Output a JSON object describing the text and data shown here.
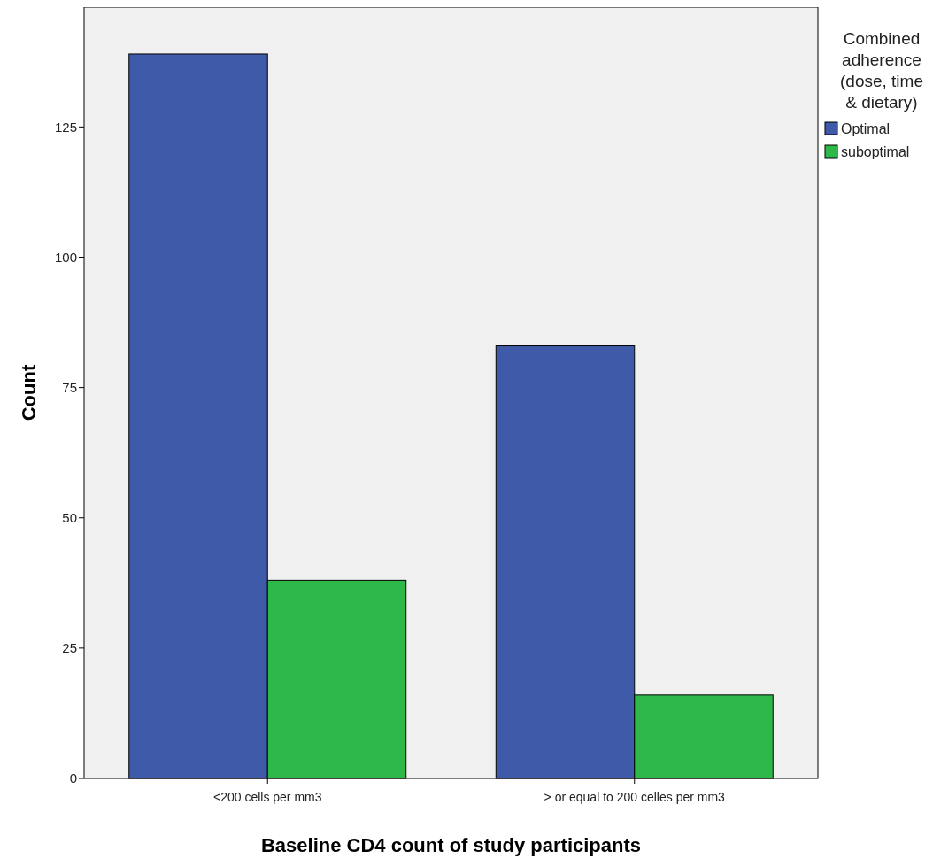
{
  "chart_data": {
    "type": "bar",
    "xlabel": "Baseline CD4 count of study participants",
    "ylabel": "Count",
    "legend_title": "Combined adherence (dose, time & dietary)",
    "categories": [
      "<200 cells per mm3",
      "> or equal to 200 celles per mm3"
    ],
    "series": [
      {
        "name": "Optimal",
        "color": "#3f5aa9",
        "values": [
          139,
          83
        ]
      },
      {
        "name": "suboptimal",
        "color": "#2eb84a",
        "values": [
          38,
          16
        ]
      }
    ],
    "ylim": [
      0,
      148
    ],
    "yticks": [
      0,
      25,
      50,
      75,
      100,
      125
    ],
    "grid": false,
    "legend": "top right"
  }
}
